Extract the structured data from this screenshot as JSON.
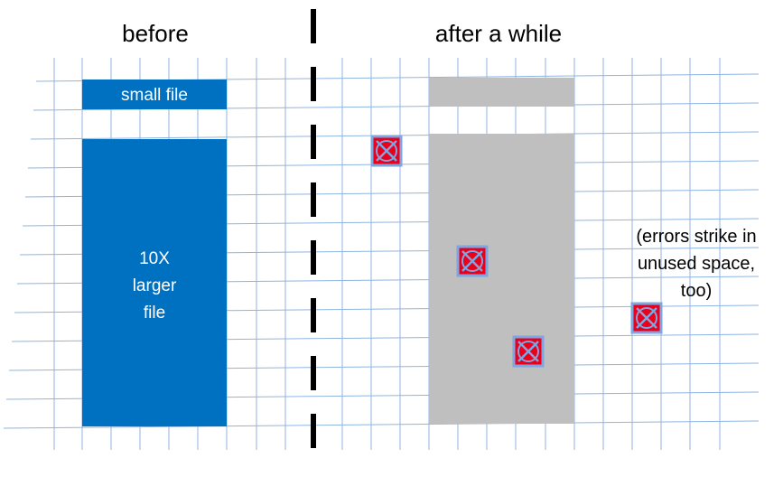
{
  "headings": {
    "before": "before",
    "after": "after a while"
  },
  "labels": {
    "small_file": "small file",
    "large_file_line1": "10X",
    "large_file_line2": "larger",
    "large_file_line3": "file",
    "note_line1": "(errors strike in",
    "note_line2": "unused space,",
    "note_line3": "too)"
  },
  "colors": {
    "file_blue": "#0070c0",
    "faded_gray": "#bfbfbf",
    "grid_line": "#8fb4e3",
    "error_fill": "#e8001c",
    "error_border": "#7ea6e0",
    "divider": "#000000"
  },
  "icons": {
    "error_marker": "x-in-box-icon"
  }
}
